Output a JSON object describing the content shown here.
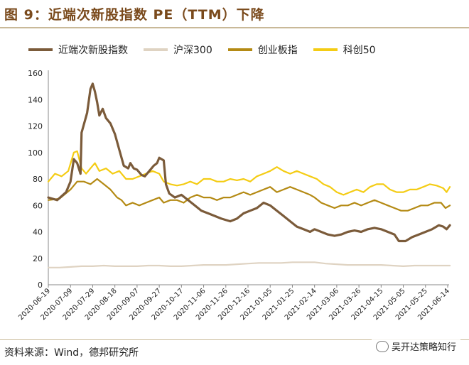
{
  "title": "图 9：近端次新股指数 PE（TTM）下降",
  "source": "资料来源：Wind，德邦研究所",
  "watermark": "吴开达策略知行",
  "colors": {
    "cixin": "#7b5b3a",
    "hs300": "#dfd3c2",
    "cyb": "#b48a14",
    "kc50": "#f4cc14",
    "title": "#7a4a1c"
  },
  "chart_data": {
    "type": "line",
    "title": "",
    "xlabel": "",
    "ylabel": "",
    "ylim": [
      0,
      160
    ],
    "yticks": [
      0,
      20,
      40,
      60,
      80,
      100,
      120,
      140,
      160
    ],
    "legend_position": "top",
    "categories": [
      "2020-06-19",
      "2020-07-09",
      "2020-07-29",
      "2020-08-18",
      "2020-09-07",
      "2020-09-27",
      "2020-10-17",
      "2020-11-06",
      "2020-11-26",
      "2020-12-16",
      "2021-01-05",
      "2021-01-25",
      "2021-02-14",
      "2021-03-06",
      "2021-03-26",
      "2021-04-15",
      "2021-05-05",
      "2021-05-25",
      "2021-06-14"
    ],
    "series": [
      {
        "name": "近端次新股指数",
        "values": [
          [
            0,
            66
          ],
          [
            0.4,
            64
          ],
          [
            0.8,
            70
          ],
          [
            1.0,
            78
          ],
          [
            1.15,
            95
          ],
          [
            1.3,
            92
          ],
          [
            1.45,
            84
          ],
          [
            1.5,
            115
          ],
          [
            1.75,
            130
          ],
          [
            1.9,
            148
          ],
          [
            2.0,
            152
          ],
          [
            2.1,
            146
          ],
          [
            2.2,
            138
          ],
          [
            2.3,
            128
          ],
          [
            2.45,
            133
          ],
          [
            2.6,
            126
          ],
          [
            2.8,
            122
          ],
          [
            3.0,
            114
          ],
          [
            3.2,
            102
          ],
          [
            3.4,
            90
          ],
          [
            3.6,
            88
          ],
          [
            3.7,
            92
          ],
          [
            3.85,
            88
          ],
          [
            4.0,
            87
          ],
          [
            4.2,
            83
          ],
          [
            4.35,
            82
          ],
          [
            4.55,
            86
          ],
          [
            4.75,
            90
          ],
          [
            4.9,
            92
          ],
          [
            5.0,
            96
          ],
          [
            5.2,
            94
          ],
          [
            5.3,
            76
          ],
          [
            5.45,
            69
          ],
          [
            5.7,
            66
          ],
          [
            6.0,
            68
          ],
          [
            6.3,
            64
          ],
          [
            6.6,
            60
          ],
          [
            6.9,
            56
          ],
          [
            7.2,
            54
          ],
          [
            7.5,
            52
          ],
          [
            7.8,
            50
          ],
          [
            8.2,
            48
          ],
          [
            8.5,
            50
          ],
          [
            8.8,
            54
          ],
          [
            9.1,
            56
          ],
          [
            9.4,
            58
          ],
          [
            9.7,
            62
          ],
          [
            10.0,
            60
          ],
          [
            10.3,
            56
          ],
          [
            10.6,
            52
          ],
          [
            10.9,
            48
          ],
          [
            11.2,
            44
          ],
          [
            11.5,
            42
          ],
          [
            11.8,
            40
          ],
          [
            12.0,
            42
          ],
          [
            12.3,
            40
          ],
          [
            12.6,
            38
          ],
          [
            12.9,
            37
          ],
          [
            13.2,
            38
          ],
          [
            13.5,
            40
          ],
          [
            13.8,
            41
          ],
          [
            14.1,
            40
          ],
          [
            14.4,
            42
          ],
          [
            14.7,
            43
          ],
          [
            15.0,
            42
          ],
          [
            15.3,
            40
          ],
          [
            15.6,
            38
          ],
          [
            15.8,
            33
          ],
          [
            16.1,
            33
          ],
          [
            16.4,
            36
          ],
          [
            16.7,
            38
          ],
          [
            17.0,
            40
          ],
          [
            17.3,
            42
          ],
          [
            17.6,
            45
          ],
          [
            17.8,
            44
          ],
          [
            17.95,
            42
          ],
          [
            18.1,
            45
          ]
        ]
      },
      {
        "name": "沪深300",
        "values": [
          [
            0,
            13
          ],
          [
            0.5,
            13
          ],
          [
            1.0,
            13.5
          ],
          [
            1.5,
            14
          ],
          [
            2.0,
            14
          ],
          [
            2.5,
            14.5
          ],
          [
            3.0,
            14
          ],
          [
            3.5,
            14
          ],
          [
            4.0,
            14
          ],
          [
            4.5,
            14.5
          ],
          [
            5.0,
            14.5
          ],
          [
            5.5,
            14
          ],
          [
            6.0,
            14
          ],
          [
            6.5,
            14.5
          ],
          [
            7.0,
            15
          ],
          [
            7.5,
            15
          ],
          [
            8.0,
            15
          ],
          [
            8.5,
            15.5
          ],
          [
            9.0,
            16
          ],
          [
            9.5,
            16.5
          ],
          [
            10.0,
            16.5
          ],
          [
            10.5,
            16.5
          ],
          [
            11.0,
            17
          ],
          [
            11.5,
            17
          ],
          [
            12.0,
            17
          ],
          [
            12.5,
            16
          ],
          [
            13.0,
            15.5
          ],
          [
            13.5,
            15
          ],
          [
            14.0,
            15
          ],
          [
            14.5,
            15
          ],
          [
            15.0,
            15
          ],
          [
            15.5,
            14.5
          ],
          [
            16.0,
            14
          ],
          [
            16.5,
            14.5
          ],
          [
            17.0,
            14.5
          ],
          [
            17.5,
            14.5
          ],
          [
            18.1,
            14.5
          ]
        ]
      },
      {
        "name": "创业板指",
        "values": [
          [
            0,
            64
          ],
          [
            0.5,
            65
          ],
          [
            1.0,
            72
          ],
          [
            1.3,
            78
          ],
          [
            1.6,
            78
          ],
          [
            1.9,
            76
          ],
          [
            2.2,
            80
          ],
          [
            2.5,
            76
          ],
          [
            2.8,
            72
          ],
          [
            3.1,
            66
          ],
          [
            3.3,
            64
          ],
          [
            3.5,
            60
          ],
          [
            3.8,
            62
          ],
          [
            4.1,
            60
          ],
          [
            4.4,
            62
          ],
          [
            4.7,
            64
          ],
          [
            5.0,
            66
          ],
          [
            5.2,
            62
          ],
          [
            5.5,
            64
          ],
          [
            5.8,
            64
          ],
          [
            6.1,
            62
          ],
          [
            6.4,
            66
          ],
          [
            6.7,
            68
          ],
          [
            7.0,
            66
          ],
          [
            7.3,
            66
          ],
          [
            7.6,
            64
          ],
          [
            7.9,
            66
          ],
          [
            8.2,
            66
          ],
          [
            8.5,
            68
          ],
          [
            8.8,
            70
          ],
          [
            9.1,
            68
          ],
          [
            9.4,
            70
          ],
          [
            9.7,
            72
          ],
          [
            10.0,
            74
          ],
          [
            10.3,
            70
          ],
          [
            10.6,
            72
          ],
          [
            10.9,
            74
          ],
          [
            11.2,
            72
          ],
          [
            11.5,
            70
          ],
          [
            11.8,
            68
          ],
          [
            12.0,
            66
          ],
          [
            12.3,
            62
          ],
          [
            12.6,
            60
          ],
          [
            12.9,
            58
          ],
          [
            13.2,
            60
          ],
          [
            13.5,
            60
          ],
          [
            13.8,
            62
          ],
          [
            14.1,
            60
          ],
          [
            14.4,
            62
          ],
          [
            14.7,
            64
          ],
          [
            15.0,
            62
          ],
          [
            15.3,
            60
          ],
          [
            15.6,
            58
          ],
          [
            15.9,
            56
          ],
          [
            16.2,
            56
          ],
          [
            16.5,
            58
          ],
          [
            16.8,
            60
          ],
          [
            17.1,
            60
          ],
          [
            17.4,
            62
          ],
          [
            17.7,
            62
          ],
          [
            17.9,
            58
          ],
          [
            18.1,
            60
          ]
        ]
      },
      {
        "name": "科创50",
        "values": [
          [
            0,
            78
          ],
          [
            0.3,
            84
          ],
          [
            0.6,
            82
          ],
          [
            0.9,
            86
          ],
          [
            1.15,
            100
          ],
          [
            1.3,
            101
          ],
          [
            1.5,
            88
          ],
          [
            1.7,
            84
          ],
          [
            1.9,
            88
          ],
          [
            2.1,
            92
          ],
          [
            2.3,
            86
          ],
          [
            2.6,
            88
          ],
          [
            2.9,
            84
          ],
          [
            3.2,
            86
          ],
          [
            3.5,
            80
          ],
          [
            3.8,
            80
          ],
          [
            4.1,
            82
          ],
          [
            4.4,
            84
          ],
          [
            4.7,
            86
          ],
          [
            5.0,
            84
          ],
          [
            5.2,
            78
          ],
          [
            5.5,
            76
          ],
          [
            5.8,
            75
          ],
          [
            6.1,
            76
          ],
          [
            6.4,
            78
          ],
          [
            6.7,
            76
          ],
          [
            7.0,
            80
          ],
          [
            7.3,
            80
          ],
          [
            7.6,
            78
          ],
          [
            7.9,
            78
          ],
          [
            8.2,
            80
          ],
          [
            8.5,
            79
          ],
          [
            8.8,
            80
          ],
          [
            9.1,
            78
          ],
          [
            9.4,
            82
          ],
          [
            9.7,
            84
          ],
          [
            10.0,
            86
          ],
          [
            10.3,
            89
          ],
          [
            10.6,
            86
          ],
          [
            10.9,
            84
          ],
          [
            11.2,
            86
          ],
          [
            11.5,
            84
          ],
          [
            11.8,
            82
          ],
          [
            12.1,
            80
          ],
          [
            12.4,
            76
          ],
          [
            12.7,
            74
          ],
          [
            13.0,
            70
          ],
          [
            13.3,
            68
          ],
          [
            13.6,
            70
          ],
          [
            13.9,
            72
          ],
          [
            14.2,
            70
          ],
          [
            14.5,
            74
          ],
          [
            14.8,
            76
          ],
          [
            15.1,
            76
          ],
          [
            15.4,
            72
          ],
          [
            15.7,
            70
          ],
          [
            16.0,
            70
          ],
          [
            16.3,
            72
          ],
          [
            16.6,
            72
          ],
          [
            16.9,
            74
          ],
          [
            17.2,
            76
          ],
          [
            17.5,
            75
          ],
          [
            17.8,
            73
          ],
          [
            17.95,
            70
          ],
          [
            18.1,
            74
          ]
        ]
      }
    ]
  }
}
